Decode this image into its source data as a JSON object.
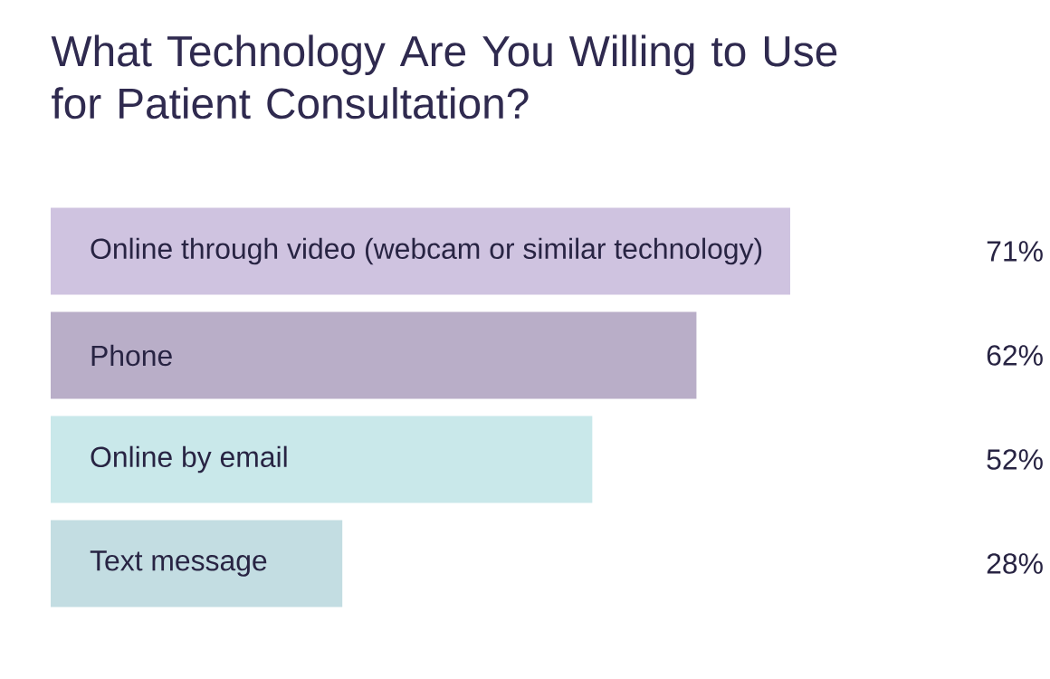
{
  "chart_data": {
    "type": "bar",
    "orientation": "horizontal",
    "title": "What Technology Are You Willing to Use for Patient Consultation?",
    "categories": [
      "Online through video (webcam or similar technology)",
      "Phone",
      "Online by email",
      "Text message"
    ],
    "values": [
      71,
      62,
      52,
      28
    ],
    "value_labels": [
      "71%",
      "62%",
      "52%",
      "28%"
    ],
    "colors": [
      "#cfc3e0",
      "#b9aec8",
      "#c9e8ea",
      "#c3dde2"
    ]
  }
}
